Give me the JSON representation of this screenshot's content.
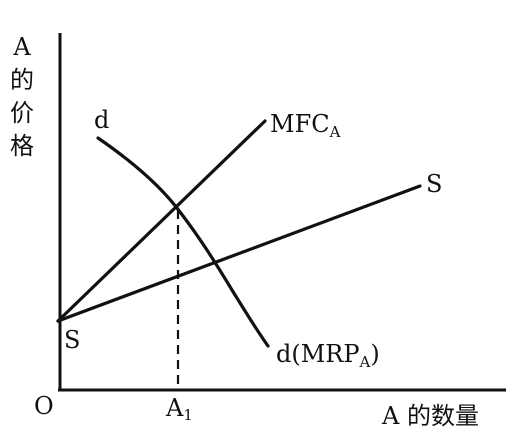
{
  "y_label": [
    "A",
    "的",
    "价",
    "格"
  ],
  "x_label": "A 的数量",
  "origin": "O",
  "x_point": {
    "label": "A",
    "subscript": "1"
  },
  "curves": {
    "supply": {
      "start_label": "S",
      "end_label": "S"
    },
    "mfc": {
      "label": "MFC",
      "subscript": "A"
    },
    "demand": {
      "start_label": "d",
      "end_label": "d(MRP",
      "end_subscript": "A",
      "end_close": ")"
    }
  }
}
